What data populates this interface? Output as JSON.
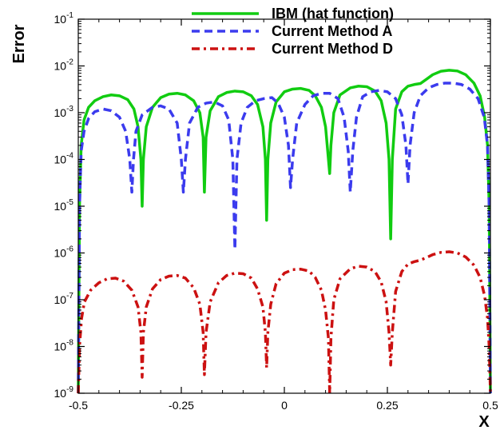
{
  "chart_data": {
    "type": "line",
    "title": "",
    "xlabel": "X",
    "ylabel": "Error",
    "xlim": [
      -0.5,
      0.5
    ],
    "ylim": [
      1e-09,
      0.1
    ],
    "yscale": "log",
    "grid": false,
    "legend_position": "top-right",
    "x_ticks": [
      {
        "value": -0.5,
        "label": "-0.5"
      },
      {
        "value": -0.25,
        "label": "-0.25"
      },
      {
        "value": 0,
        "label": "0"
      },
      {
        "value": 0.25,
        "label": "0.25"
      },
      {
        "value": 0.5,
        "label": "0.5"
      }
    ],
    "y_ticks": [
      {
        "value": 1e-09,
        "base": "10",
        "exp": "-9"
      },
      {
        "value": 1e-08,
        "base": "10",
        "exp": "-8"
      },
      {
        "value": 1e-07,
        "base": "10",
        "exp": "-7"
      },
      {
        "value": 1e-06,
        "base": "10",
        "exp": "-6"
      },
      {
        "value": 1e-05,
        "base": "10",
        "exp": "-5"
      },
      {
        "value": 0.0001,
        "base": "10",
        "exp": "-4"
      },
      {
        "value": 0.001,
        "base": "10",
        "exp": "-3"
      },
      {
        "value": 0.01,
        "base": "10",
        "exp": "-2"
      },
      {
        "value": 0.1,
        "base": "10",
        "exp": "-1"
      }
    ],
    "series": [
      {
        "name": "IBM (hat function)",
        "color": "#11cc11",
        "dash": "solid",
        "points": [
          [
            -0.5,
            1e-09
          ],
          [
            -0.497,
            1e-05
          ],
          [
            -0.493,
            0.0002
          ],
          [
            -0.486,
            0.0007
          ],
          [
            -0.475,
            0.0013
          ],
          [
            -0.46,
            0.0018
          ],
          [
            -0.44,
            0.0022
          ],
          [
            -0.42,
            0.0024
          ],
          [
            -0.4,
            0.0023
          ],
          [
            -0.38,
            0.0019
          ],
          [
            -0.365,
            0.0012
          ],
          [
            -0.355,
            0.0005
          ],
          [
            -0.348,
            0.0001
          ],
          [
            -0.345,
            1e-05
          ],
          [
            -0.342,
            0.0001
          ],
          [
            -0.335,
            0.0005
          ],
          [
            -0.32,
            0.0013
          ],
          [
            -0.3,
            0.0021
          ],
          [
            -0.28,
            0.0025
          ],
          [
            -0.26,
            0.0026
          ],
          [
            -0.24,
            0.0024
          ],
          [
            -0.22,
            0.0018
          ],
          [
            -0.205,
            0.001
          ],
          [
            -0.197,
            0.0003
          ],
          [
            -0.194,
            2e-05
          ],
          [
            -0.19,
            0.0003
          ],
          [
            -0.18,
            0.0011
          ],
          [
            -0.16,
            0.0022
          ],
          [
            -0.14,
            0.0027
          ],
          [
            -0.12,
            0.0029
          ],
          [
            -0.1,
            0.0028
          ],
          [
            -0.08,
            0.0023
          ],
          [
            -0.065,
            0.0015
          ],
          [
            -0.052,
            0.0005
          ],
          [
            -0.046,
            0.0001
          ],
          [
            -0.043,
            5e-06
          ],
          [
            -0.04,
            0.0001
          ],
          [
            -0.033,
            0.0006
          ],
          [
            -0.02,
            0.0017
          ],
          [
            0.0,
            0.0028
          ],
          [
            0.02,
            0.0032
          ],
          [
            0.04,
            0.0033
          ],
          [
            0.06,
            0.003
          ],
          [
            0.075,
            0.0023
          ],
          [
            0.09,
            0.0013
          ],
          [
            0.1,
            0.0005
          ],
          [
            0.107,
            0.0001
          ],
          [
            0.11,
            5e-05
          ],
          [
            0.113,
            0.0002
          ],
          [
            0.12,
            0.001
          ],
          [
            0.135,
            0.0024
          ],
          [
            0.16,
            0.0034
          ],
          [
            0.18,
            0.0037
          ],
          [
            0.2,
            0.0036
          ],
          [
            0.22,
            0.0029
          ],
          [
            0.235,
            0.0018
          ],
          [
            0.247,
            0.0006
          ],
          [
            0.254,
            0.0001
          ],
          [
            0.258,
            2e-06
          ],
          [
            0.262,
            0.0001
          ],
          [
            0.27,
            0.0012
          ],
          [
            0.285,
            0.0028
          ],
          [
            0.3,
            0.0037
          ],
          [
            0.315,
            0.004
          ],
          [
            0.33,
            0.0042
          ],
          [
            0.345,
            0.0052
          ],
          [
            0.36,
            0.0065
          ],
          [
            0.38,
            0.0077
          ],
          [
            0.4,
            0.0081
          ],
          [
            0.42,
            0.0078
          ],
          [
            0.44,
            0.0065
          ],
          [
            0.46,
            0.0043
          ],
          [
            0.475,
            0.0023
          ],
          [
            0.486,
            0.0008
          ],
          [
            0.493,
            0.0002
          ],
          [
            0.497,
            1e-05
          ],
          [
            0.5,
            1e-09
          ]
        ]
      },
      {
        "name": "Current Method A",
        "color": "#3b3bee",
        "dash": "dashed",
        "points": [
          [
            -0.5,
            1e-09
          ],
          [
            -0.497,
            1e-05
          ],
          [
            -0.493,
            0.00015
          ],
          [
            -0.486,
            0.0004
          ],
          [
            -0.475,
            0.00075
          ],
          [
            -0.46,
            0.00105
          ],
          [
            -0.44,
            0.0012
          ],
          [
            -0.42,
            0.0011
          ],
          [
            -0.4,
            0.0008
          ],
          [
            -0.385,
            0.0004
          ],
          [
            -0.375,
            0.0001
          ],
          [
            -0.37,
            2e-05
          ],
          [
            -0.366,
            0.0001
          ],
          [
            -0.36,
            0.0004
          ],
          [
            -0.345,
            0.0009
          ],
          [
            -0.32,
            0.0013
          ],
          [
            -0.3,
            0.0014
          ],
          [
            -0.28,
            0.0012
          ],
          [
            -0.26,
            0.0006
          ],
          [
            -0.25,
            0.0001
          ],
          [
            -0.245,
            2e-05
          ],
          [
            -0.24,
            0.0001
          ],
          [
            -0.23,
            0.0006
          ],
          [
            -0.21,
            0.0013
          ],
          [
            -0.19,
            0.0016
          ],
          [
            -0.17,
            0.0017
          ],
          [
            -0.15,
            0.0014
          ],
          [
            -0.135,
            0.0007
          ],
          [
            -0.125,
            0.0001
          ],
          [
            -0.12,
            1.2e-06
          ],
          [
            -0.115,
            0.0001
          ],
          [
            -0.105,
            0.0006
          ],
          [
            -0.09,
            0.0013
          ],
          [
            -0.07,
            0.0018
          ],
          [
            -0.05,
            0.002
          ],
          [
            -0.03,
            0.0021
          ],
          [
            -0.015,
            0.0016
          ],
          [
            0.0,
            0.0008
          ],
          [
            0.01,
            0.0002
          ],
          [
            0.015,
            2.5e-05
          ],
          [
            0.02,
            0.0001
          ],
          [
            0.03,
            0.0006
          ],
          [
            0.05,
            0.0015
          ],
          [
            0.07,
            0.0023
          ],
          [
            0.09,
            0.0026
          ],
          [
            0.11,
            0.0026
          ],
          [
            0.13,
            0.002
          ],
          [
            0.145,
            0.0008
          ],
          [
            0.155,
            0.00015
          ],
          [
            0.16,
            2e-05
          ],
          [
            0.166,
            0.00015
          ],
          [
            0.175,
            0.0008
          ],
          [
            0.19,
            0.0022
          ],
          [
            0.21,
            0.0028
          ],
          [
            0.23,
            0.003
          ],
          [
            0.25,
            0.0028
          ],
          [
            0.27,
            0.002
          ],
          [
            0.285,
            0.0009
          ],
          [
            0.295,
            0.0002
          ],
          [
            0.3,
            3e-05
          ],
          [
            0.305,
            0.0002
          ],
          [
            0.315,
            0.001
          ],
          [
            0.33,
            0.0023
          ],
          [
            0.35,
            0.0034
          ],
          [
            0.37,
            0.004
          ],
          [
            0.39,
            0.0043
          ],
          [
            0.41,
            0.0043
          ],
          [
            0.43,
            0.004
          ],
          [
            0.45,
            0.0032
          ],
          [
            0.47,
            0.002
          ],
          [
            0.485,
            0.0008
          ],
          [
            0.493,
            0.0002
          ],
          [
            0.497,
            1e-05
          ],
          [
            0.5,
            1e-09
          ]
        ]
      },
      {
        "name": "Current Method D",
        "color": "#cc1111",
        "dash": "dashdot",
        "points": [
          [
            -0.5,
            1e-09
          ],
          [
            -0.497,
            1e-08
          ],
          [
            -0.492,
            4e-08
          ],
          [
            -0.485,
            9e-08
          ],
          [
            -0.47,
            1.6e-07
          ],
          [
            -0.45,
            2.3e-07
          ],
          [
            -0.43,
            2.8e-07
          ],
          [
            -0.41,
            2.9e-07
          ],
          [
            -0.39,
            2.5e-07
          ],
          [
            -0.37,
            1.6e-07
          ],
          [
            -0.355,
            7e-08
          ],
          [
            -0.348,
            2e-08
          ],
          [
            -0.345,
            2.2e-09
          ],
          [
            -0.342,
            2e-08
          ],
          [
            -0.335,
            7e-08
          ],
          [
            -0.32,
            1.7e-07
          ],
          [
            -0.3,
            2.7e-07
          ],
          [
            -0.28,
            3.2e-07
          ],
          [
            -0.26,
            3.3e-07
          ],
          [
            -0.24,
            2.9e-07
          ],
          [
            -0.22,
            1.8e-07
          ],
          [
            -0.205,
            8e-08
          ],
          [
            -0.197,
            2e-08
          ],
          [
            -0.194,
            2.5e-09
          ],
          [
            -0.19,
            2e-08
          ],
          [
            -0.18,
            9e-08
          ],
          [
            -0.16,
            2.3e-07
          ],
          [
            -0.14,
            3.3e-07
          ],
          [
            -0.12,
            3.7e-07
          ],
          [
            -0.1,
            3.6e-07
          ],
          [
            -0.08,
            2.9e-07
          ],
          [
            -0.065,
            1.7e-07
          ],
          [
            -0.052,
            7e-08
          ],
          [
            -0.046,
            2e-08
          ],
          [
            -0.043,
            3.5e-09
          ],
          [
            -0.04,
            2e-08
          ],
          [
            -0.033,
            8e-08
          ],
          [
            -0.02,
            2.2e-07
          ],
          [
            0.0,
            3.7e-07
          ],
          [
            0.02,
            4.4e-07
          ],
          [
            0.04,
            4.5e-07
          ],
          [
            0.06,
            4.1e-07
          ],
          [
            0.075,
            3e-07
          ],
          [
            0.09,
            1.6e-07
          ],
          [
            0.1,
            6e-08
          ],
          [
            0.107,
            1.5e-08
          ],
          [
            0.11,
            1e-09
          ],
          [
            0.113,
            1.5e-08
          ],
          [
            0.12,
            1e-07
          ],
          [
            0.135,
            2.8e-07
          ],
          [
            0.16,
            4.6e-07
          ],
          [
            0.18,
            5.2e-07
          ],
          [
            0.2,
            5e-07
          ],
          [
            0.22,
            4e-07
          ],
          [
            0.235,
            2.4e-07
          ],
          [
            0.247,
            9e-08
          ],
          [
            0.254,
            2e-08
          ],
          [
            0.258,
            4e-09
          ],
          [
            0.262,
            2e-08
          ],
          [
            0.27,
            1.5e-07
          ],
          [
            0.285,
            4e-07
          ],
          [
            0.3,
            5.8e-07
          ],
          [
            0.315,
            6.5e-07
          ],
          [
            0.33,
            7e-07
          ],
          [
            0.345,
            8e-07
          ],
          [
            0.36,
            9.2e-07
          ],
          [
            0.38,
            1.03e-06
          ],
          [
            0.4,
            1.06e-06
          ],
          [
            0.42,
            1e-06
          ],
          [
            0.44,
            8.2e-07
          ],
          [
            0.46,
            5.5e-07
          ],
          [
            0.475,
            3e-07
          ],
          [
            0.486,
            1.2e-07
          ],
          [
            0.493,
            4e-08
          ],
          [
            0.497,
            1e-08
          ],
          [
            0.5,
            1e-09
          ]
        ]
      }
    ]
  }
}
